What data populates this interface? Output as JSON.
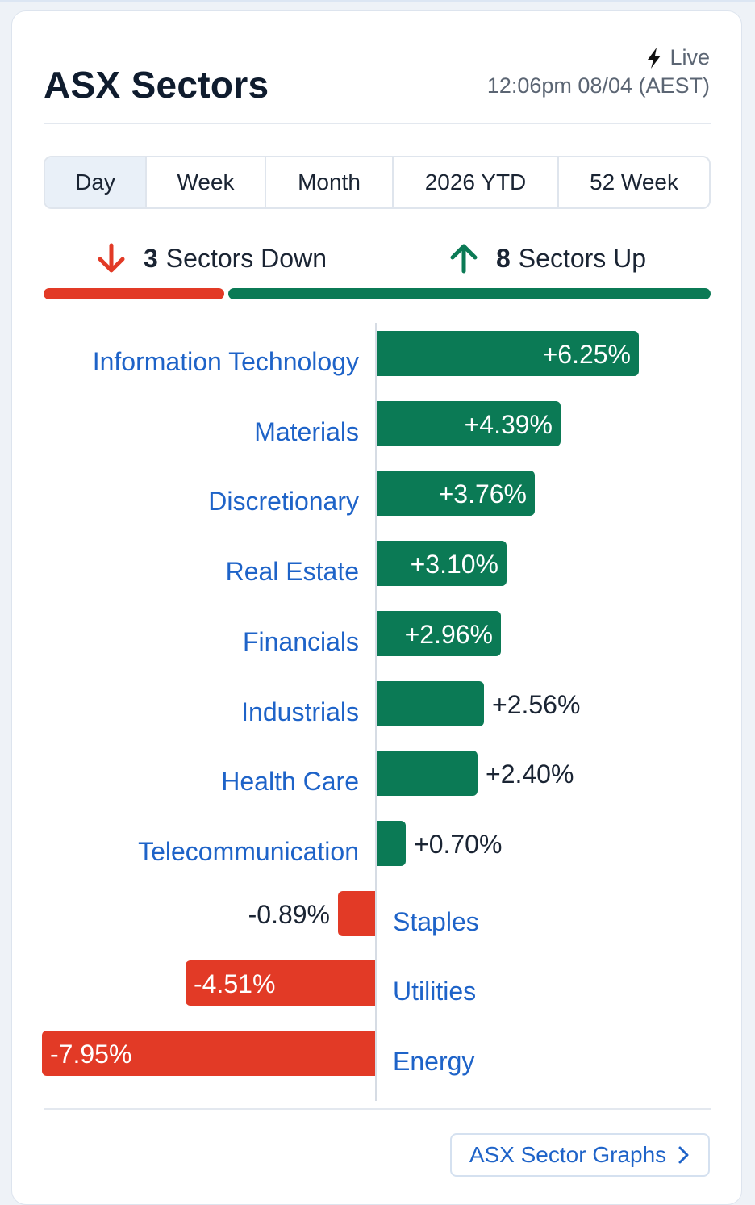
{
  "header": {
    "title": "ASX Sectors",
    "live_label": "Live",
    "timestamp": "12:06pm 08/04 (AEST)"
  },
  "tabs": [
    {
      "label": "Day",
      "active": true
    },
    {
      "label": "Week",
      "active": false
    },
    {
      "label": "Month",
      "active": false
    },
    {
      "label": "2026 YTD",
      "active": false
    },
    {
      "label": "52 Week",
      "active": false
    }
  ],
  "summary": {
    "down_count": "3",
    "down_label": "Sectors Down",
    "up_count": "8",
    "up_label": "Sectors Up"
  },
  "colors": {
    "up": "#0b7a55",
    "down": "#e23a26",
    "link": "#1e63c8"
  },
  "chart_data": {
    "type": "bar",
    "orientation": "horizontal",
    "unit": "%",
    "categories": [
      "Information Technology",
      "Materials",
      "Discretionary",
      "Real Estate",
      "Financials",
      "Industrials",
      "Health Care",
      "Telecommunication",
      "Staples",
      "Utilities",
      "Energy"
    ],
    "values": [
      6.25,
      4.39,
      3.76,
      3.1,
      2.96,
      2.56,
      2.4,
      0.7,
      -0.89,
      -4.51,
      -7.95
    ],
    "value_labels": [
      "+6.25%",
      "+4.39%",
      "+3.76%",
      "+3.10%",
      "+2.96%",
      "+2.56%",
      "+2.40%",
      "+0.70%",
      "-0.89%",
      "-4.51%",
      "-7.95%"
    ]
  },
  "footer": {
    "button_label": "ASX Sector Graphs"
  }
}
